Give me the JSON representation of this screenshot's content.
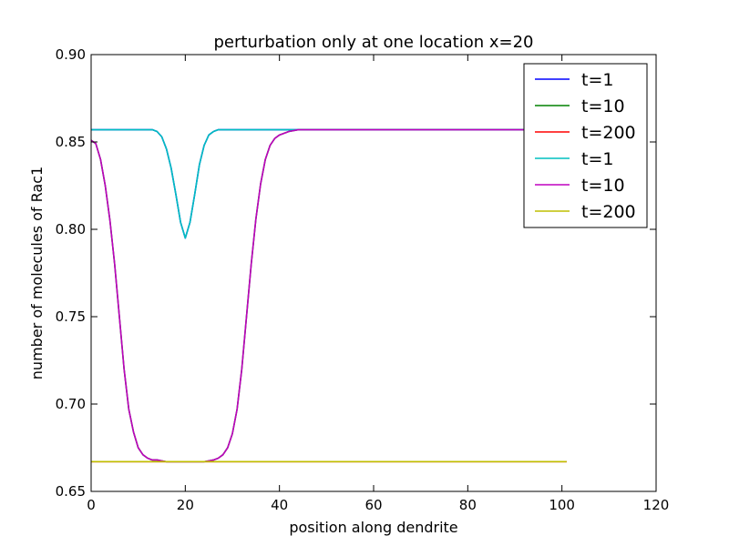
{
  "chart_data": {
    "type": "line",
    "title": "perturbation only at one location x=20",
    "xlabel": "position along dendrite",
    "ylabel": "number of molecules of Rac1",
    "xlim": [
      0,
      120
    ],
    "ylim": [
      0.65,
      0.9
    ],
    "xticks": [
      0,
      20,
      40,
      60,
      80,
      100,
      120
    ],
    "yticks": [
      0.65,
      0.7,
      0.75,
      0.8,
      0.85,
      0.9
    ],
    "xtick_labels": [
      "0",
      "20",
      "40",
      "60",
      "80",
      "100",
      "120"
    ],
    "ytick_labels": [
      "0.65",
      "0.70",
      "0.75",
      "0.80",
      "0.85",
      "0.90"
    ],
    "grid": false,
    "legend_position": "top-right",
    "series": [
      {
        "name": "t=1",
        "color": "#0000ff",
        "x": [
          0,
          10,
          13,
          14,
          15,
          16,
          17,
          18,
          19,
          20,
          21,
          22,
          23,
          24,
          25,
          26,
          27,
          30,
          101
        ],
        "y": [
          0.857,
          0.857,
          0.857,
          0.856,
          0.853,
          0.846,
          0.835,
          0.82,
          0.804,
          0.795,
          0.804,
          0.82,
          0.837,
          0.848,
          0.854,
          0.856,
          0.857,
          0.857,
          0.857
        ]
      },
      {
        "name": "t=10",
        "color": "#008000",
        "x": [
          0,
          1,
          2,
          3,
          4,
          5,
          6,
          7,
          8,
          9,
          10,
          11,
          12,
          13,
          14,
          16,
          18,
          20,
          22,
          24,
          26,
          27,
          28,
          29,
          30,
          31,
          32,
          33,
          34,
          35,
          36,
          37,
          38,
          39,
          40,
          42,
          44,
          47,
          101
        ],
        "y": [
          0.851,
          0.849,
          0.84,
          0.825,
          0.805,
          0.78,
          0.75,
          0.72,
          0.697,
          0.684,
          0.675,
          0.671,
          0.669,
          0.668,
          0.668,
          0.667,
          0.667,
          0.667,
          0.667,
          0.667,
          0.668,
          0.669,
          0.671,
          0.675,
          0.683,
          0.697,
          0.72,
          0.75,
          0.78,
          0.806,
          0.826,
          0.84,
          0.848,
          0.852,
          0.854,
          0.856,
          0.857,
          0.857,
          0.857
        ]
      },
      {
        "name": "t=200",
        "color": "#ff0000",
        "x": [
          0,
          101
        ],
        "y": [
          0.667,
          0.667
        ]
      },
      {
        "name": "t=1",
        "color": "#00bfbf",
        "x": [
          0,
          10,
          13,
          14,
          15,
          16,
          17,
          18,
          19,
          20,
          21,
          22,
          23,
          24,
          25,
          26,
          27,
          30,
          101
        ],
        "y": [
          0.857,
          0.857,
          0.857,
          0.856,
          0.853,
          0.846,
          0.835,
          0.82,
          0.804,
          0.795,
          0.804,
          0.82,
          0.837,
          0.848,
          0.854,
          0.856,
          0.857,
          0.857,
          0.857
        ]
      },
      {
        "name": "t=10",
        "color": "#bf00bf",
        "x": [
          0,
          1,
          2,
          3,
          4,
          5,
          6,
          7,
          8,
          9,
          10,
          11,
          12,
          13,
          14,
          16,
          18,
          20,
          22,
          24,
          26,
          27,
          28,
          29,
          30,
          31,
          32,
          33,
          34,
          35,
          36,
          37,
          38,
          39,
          40,
          42,
          44,
          47,
          101
        ],
        "y": [
          0.851,
          0.849,
          0.84,
          0.825,
          0.805,
          0.78,
          0.75,
          0.72,
          0.697,
          0.684,
          0.675,
          0.671,
          0.669,
          0.668,
          0.668,
          0.667,
          0.667,
          0.667,
          0.667,
          0.667,
          0.668,
          0.669,
          0.671,
          0.675,
          0.683,
          0.697,
          0.72,
          0.75,
          0.78,
          0.806,
          0.826,
          0.84,
          0.848,
          0.852,
          0.854,
          0.856,
          0.857,
          0.857,
          0.857
        ]
      },
      {
        "name": "t=200",
        "color": "#bfbf00",
        "x": [
          0,
          101
        ],
        "y": [
          0.667,
          0.667
        ]
      }
    ]
  }
}
